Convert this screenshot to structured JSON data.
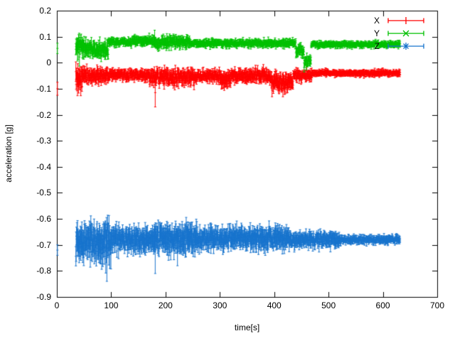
{
  "chart_data": {
    "type": "line",
    "style": "errorbars",
    "title": "",
    "xlabel": "time[s]",
    "ylabel": "acceleration [g]",
    "xlim": [
      0,
      700
    ],
    "ylim": [
      -0.9,
      0.2
    ],
    "xticks": [
      0,
      100,
      200,
      300,
      400,
      500,
      600,
      700
    ],
    "yticks": [
      0.2,
      0.1,
      0,
      -0.1,
      -0.2,
      -0.3,
      -0.4,
      -0.5,
      -0.6,
      -0.7,
      -0.8,
      -0.9
    ],
    "ytick_labels": [
      "0.2",
      "0.1",
      "0",
      "-0.1",
      "-0.2",
      "-0.3",
      "-0.4",
      "-0.5",
      "-0.6",
      "-0.7",
      "-0.8",
      "-0.9"
    ],
    "grid": false,
    "legend_position": "top-right",
    "series": [
      {
        "name": "X",
        "color": "#ff0000",
        "marker": "plus",
        "t_range": [
          35,
          632
        ],
        "initial_point": {
          "t": 1,
          "y": -0.1,
          "err": 0.025
        },
        "segments": [
          {
            "t0": 35,
            "t1": 47,
            "mean": -0.06,
            "noise": 0.045
          },
          {
            "t0": 47,
            "t1": 95,
            "mean": -0.05,
            "noise": 0.028
          },
          {
            "t0": 95,
            "t1": 170,
            "mean": -0.048,
            "noise": 0.02
          },
          {
            "t0": 170,
            "t1": 255,
            "mean": -0.055,
            "noise": 0.03
          },
          {
            "t0": 255,
            "t1": 300,
            "mean": -0.05,
            "noise": 0.022
          },
          {
            "t0": 300,
            "t1": 320,
            "mean": -0.065,
            "noise": 0.03
          },
          {
            "t0": 320,
            "t1": 395,
            "mean": -0.05,
            "noise": 0.025
          },
          {
            "t0": 395,
            "t1": 435,
            "mean": -0.075,
            "noise": 0.035
          },
          {
            "t0": 435,
            "t1": 470,
            "mean": -0.05,
            "noise": 0.022
          },
          {
            "t0": 470,
            "t1": 632,
            "mean": -0.04,
            "noise": 0.012
          }
        ],
        "spikes": [
          {
            "t": 181,
            "y": -0.115,
            "err": 0.055
          }
        ]
      },
      {
        "name": "Y",
        "color": "#00c000",
        "marker": "cross",
        "t_range": [
          35,
          632
        ],
        "initial_point": {
          "t": 1,
          "y": 0.055,
          "err": 0.02
        },
        "segments": [
          {
            "t0": 35,
            "t1": 55,
            "mean": 0.06,
            "noise": 0.04
          },
          {
            "t0": 55,
            "t1": 95,
            "mean": 0.05,
            "noise": 0.03
          },
          {
            "t0": 95,
            "t1": 140,
            "mean": 0.08,
            "noise": 0.015
          },
          {
            "t0": 140,
            "t1": 175,
            "mean": 0.085,
            "noise": 0.018
          },
          {
            "t0": 175,
            "t1": 245,
            "mean": 0.08,
            "noise": 0.022
          },
          {
            "t0": 245,
            "t1": 440,
            "mean": 0.075,
            "noise": 0.014
          },
          {
            "t0": 440,
            "t1": 455,
            "mean": 0.045,
            "noise": 0.025
          },
          {
            "t0": 455,
            "t1": 468,
            "mean": 0.005,
            "noise": 0.025
          },
          {
            "t0": 468,
            "t1": 632,
            "mean": 0.07,
            "noise": 0.012
          }
        ],
        "spikes": [
          {
            "t": 180,
            "y": 0.095,
            "err": 0.03
          }
        ]
      },
      {
        "name": "Z",
        "color": "#1874cd",
        "marker": "asterisk",
        "t_range": [
          35,
          632
        ],
        "initial_point": {
          "t": 1,
          "y": -0.72,
          "err": 0.02
        },
        "segments": [
          {
            "t0": 35,
            "t1": 75,
            "mean": -0.685,
            "noise": 0.065
          },
          {
            "t0": 75,
            "t1": 100,
            "mean": -0.685,
            "noise": 0.075
          },
          {
            "t0": 100,
            "t1": 175,
            "mean": -0.68,
            "noise": 0.045
          },
          {
            "t0": 175,
            "t1": 260,
            "mean": -0.675,
            "noise": 0.055
          },
          {
            "t0": 260,
            "t1": 345,
            "mean": -0.675,
            "noise": 0.04
          },
          {
            "t0": 345,
            "t1": 430,
            "mean": -0.675,
            "noise": 0.042
          },
          {
            "t0": 430,
            "t1": 520,
            "mean": -0.68,
            "noise": 0.028
          },
          {
            "t0": 520,
            "t1": 632,
            "mean": -0.68,
            "noise": 0.016
          }
        ],
        "spikes": [
          {
            "t": 92,
            "y": -0.73,
            "err": 0.11
          },
          {
            "t": 181,
            "y": -0.72,
            "err": 0.09
          },
          {
            "t": 222,
            "y": -0.71,
            "err": 0.07
          }
        ]
      }
    ]
  }
}
